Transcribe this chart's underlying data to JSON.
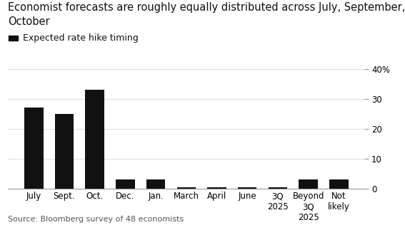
{
  "title_line1": "Economist forecasts are roughly equally distributed across July, September,",
  "title_line2": "October",
  "legend_label": "Expected rate hike timing",
  "source": "Source: Bloomberg survey of 48 economists",
  "categories": [
    "July",
    "Sept.",
    "Oct.",
    "Dec.",
    "Jan.",
    "March",
    "April",
    "June",
    "3Q\n2025",
    "Beyond\n3Q\n2025",
    "Not\nlikely"
  ],
  "values": [
    27,
    25,
    33,
    3,
    3,
    0.5,
    0.5,
    0.5,
    0.5,
    3,
    3
  ],
  "bar_color": "#111111",
  "background_color": "#ffffff",
  "ylim": [
    0,
    40
  ],
  "yticks": [
    0,
    10,
    20,
    30,
    40
  ],
  "ytick_labels": [
    "0",
    "10",
    "20",
    "30",
    "40%"
  ],
  "title_fontsize": 10.5,
  "legend_fontsize": 9,
  "source_fontsize": 8,
  "tick_fontsize": 8.5
}
